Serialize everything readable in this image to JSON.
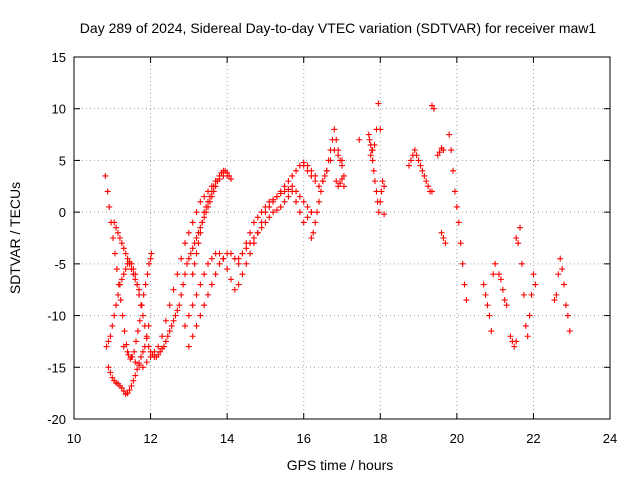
{
  "chart_data": {
    "type": "scatter",
    "title": "Day 289 of 2024, Sidereal Day-to-day VTEC variation (SDTVAR) for receiver maw1",
    "xlabel": "GPS time / hours",
    "ylabel": "SDTVAR / TECUs",
    "xlim": [
      10,
      24
    ],
    "ylim": [
      -20,
      15
    ],
    "xticks": [
      10,
      12,
      14,
      16,
      18,
      20,
      22,
      24
    ],
    "yticks": [
      -20,
      -15,
      -10,
      -5,
      0,
      5,
      10,
      15
    ],
    "grid": true,
    "marker": "+",
    "color": "#ff0000",
    "series": [
      {
        "name": "s01",
        "x": [
          10.82,
          10.88,
          10.92,
          10.97,
          11.02,
          11.07,
          11.12,
          11.17,
          11.22,
          11.27,
          11.32,
          11.37,
          11.42,
          11.47,
          11.52,
          11.57,
          11.62,
          11.67,
          11.72,
          11.77,
          11.82,
          11.87,
          11.92,
          11.96,
          12.0,
          12.02
        ],
        "y": [
          3.5,
          2.0,
          0.5,
          -1.0,
          -2.5,
          -4.0,
          -5.5,
          -7.0,
          -8.5,
          -10.0,
          -11.5,
          -12.8,
          -13.8,
          -14.2,
          -14.0,
          -13.5,
          -12.5,
          -11.5,
          -10.5,
          -9.0,
          -8.0,
          -7.0,
          -6.0,
          -5.0,
          -4.5,
          -4.0
        ]
      },
      {
        "name": "s02",
        "x": [
          10.9,
          10.95,
          11.0,
          11.05,
          11.1,
          11.15,
          11.2,
          11.25,
          11.3,
          11.35,
          11.4,
          11.45,
          11.5,
          11.55,
          11.6,
          11.65,
          11.7,
          11.75,
          11.8,
          11.85,
          11.9,
          11.95
        ],
        "y": [
          -15.0,
          -15.5,
          -16.0,
          -16.3,
          -16.5,
          -16.6,
          -16.8,
          -17.0,
          -17.3,
          -17.6,
          -17.5,
          -17.2,
          -16.8,
          -16.3,
          -15.8,
          -15.2,
          -14.6,
          -14.0,
          -13.5,
          -13.0,
          -12.2,
          -11.0
        ]
      },
      {
        "name": "s03",
        "x": [
          11.3,
          11.4,
          11.5,
          11.6,
          11.7,
          11.8,
          11.9,
          12.0,
          12.1,
          12.2,
          12.3,
          12.4,
          12.5,
          12.6,
          12.7,
          12.8,
          12.9,
          13.0,
          13.1,
          13.2,
          13.3,
          13.4,
          13.5,
          13.6,
          13.7,
          13.8,
          13.9,
          14.0
        ],
        "y": [
          -13.0,
          -13.5,
          -14.0,
          -14.5,
          -14.8,
          -15.0,
          -14.5,
          -14.0,
          -13.5,
          -13.0,
          -12.0,
          -10.5,
          -9.0,
          -7.5,
          -6.0,
          -4.5,
          -3.0,
          -2.0,
          -1.0,
          0.0,
          1.0,
          1.5,
          2.0,
          2.5,
          3.0,
          3.2,
          3.5,
          3.5
        ]
      },
      {
        "name": "s04",
        "x": [
          10.85,
          10.9,
          10.95,
          11.0,
          11.05,
          11.1,
          11.15,
          11.2,
          11.25,
          11.3,
          11.35,
          11.4,
          11.45,
          11.5,
          11.55,
          11.6,
          11.65,
          11.7,
          11.75,
          11.8,
          11.85,
          11.9,
          11.95,
          12.0,
          12.05,
          12.1,
          12.15,
          12.2,
          12.25,
          12.3,
          12.35,
          12.4,
          12.45,
          12.5,
          12.55,
          12.6,
          12.65,
          12.7,
          12.75,
          12.8,
          12.85,
          12.9,
          12.95,
          13.0,
          13.05,
          13.1,
          13.15,
          13.2,
          13.25,
          13.3,
          13.35,
          13.4,
          13.45,
          13.5,
          13.55,
          13.6,
          13.65,
          13.7,
          13.75,
          13.8,
          13.85,
          13.9,
          13.95,
          14.0,
          14.05,
          14.1
        ],
        "y": [
          -13.0,
          -12.5,
          -12.0,
          -11.0,
          -10.0,
          -9.0,
          -8.0,
          -7.0,
          -6.5,
          -6.0,
          -5.5,
          -5.0,
          -4.8,
          -5.0,
          -5.5,
          -6.0,
          -7.0,
          -8.0,
          -9.0,
          -10.0,
          -11.0,
          -12.0,
          -13.0,
          -13.5,
          -13.8,
          -14.0,
          -14.0,
          -13.8,
          -13.5,
          -13.2,
          -13.0,
          -12.5,
          -12.0,
          -11.5,
          -11.0,
          -10.5,
          -10.0,
          -9.5,
          -9.0,
          -8.0,
          -7.0,
          -6.0,
          -5.0,
          -4.5,
          -4.0,
          -3.5,
          -3.0,
          -2.5,
          -2.0,
          -1.5,
          -1.0,
          -0.5,
          0.0,
          0.5,
          1.0,
          1.5,
          2.0,
          2.5,
          3.0,
          3.5,
          3.8,
          4.0,
          4.0,
          3.8,
          3.5,
          3.2
        ]
      },
      {
        "name": "s05",
        "x": [
          11.05,
          11.1,
          11.15,
          11.2,
          11.25,
          11.3,
          11.35,
          11.4,
          11.45,
          11.5,
          11.55,
          11.6,
          11.65,
          11.7
        ],
        "y": [
          -1.0,
          -1.5,
          -2.0,
          -2.5,
          -3.0,
          -3.5,
          -4.0,
          -4.5,
          -5.0,
          -5.5,
          -6.0,
          -6.5,
          -7.0,
          -7.5
        ]
      },
      {
        "name": "s06",
        "x": [
          12.9,
          13.0,
          13.1,
          13.2,
          13.3,
          13.4,
          13.5,
          13.6,
          13.7,
          13.8,
          13.9,
          14.0,
          14.1,
          14.2,
          14.3,
          14.4,
          14.5,
          14.6,
          14.7,
          14.8,
          14.9,
          15.0,
          15.1,
          15.2,
          15.3,
          15.4,
          15.5,
          15.6,
          15.7,
          15.8,
          15.9,
          16.0,
          16.1,
          16.2,
          16.3
        ],
        "y": [
          -11.0,
          -10.0,
          -9.0,
          -8.0,
          -7.0,
          -6.0,
          -5.0,
          -4.5,
          -4.0,
          -4.0,
          -4.5,
          -5.5,
          -6.5,
          -7.5,
          -7.0,
          -6.0,
          -5.0,
          -4.0,
          -3.0,
          -2.0,
          -1.0,
          0.0,
          0.5,
          1.0,
          1.5,
          2.0,
          2.5,
          3.0,
          3.5,
          4.0,
          4.5,
          4.8,
          4.5,
          4.0,
          3.5
        ]
      },
      {
        "name": "s07",
        "x": [
          13.0,
          13.1,
          13.2,
          13.3,
          13.4,
          13.5,
          13.6,
          13.7,
          13.8,
          13.9,
          14.0,
          14.1,
          14.2,
          14.3,
          14.4,
          14.5,
          14.6,
          14.7,
          14.8,
          14.9,
          15.0,
          15.1,
          15.2,
          15.3,
          15.4,
          15.5,
          15.6,
          15.7,
          15.8,
          15.9,
          16.0,
          16.1,
          16.2
        ],
        "y": [
          -13.0,
          -12.0,
          -11.0,
          -10.0,
          -9.0,
          -8.0,
          -7.0,
          -6.0,
          -5.0,
          -4.5,
          -4.0,
          -4.0,
          -4.5,
          -5.0,
          -4.0,
          -3.0,
          -2.0,
          -1.0,
          -0.5,
          0.0,
          0.5,
          1.0,
          1.2,
          1.5,
          1.8,
          2.0,
          2.2,
          2.5,
          2.0,
          1.5,
          1.0,
          0.5,
          0.0
        ]
      },
      {
        "name": "s08",
        "x": [
          14.3,
          14.4,
          14.5,
          14.6,
          14.7,
          14.8,
          14.9,
          15.0,
          15.1,
          15.2,
          15.3,
          15.4,
          15.5,
          15.6,
          15.7,
          15.8,
          15.9,
          16.0,
          16.1,
          16.2
        ],
        "y": [
          -4.5,
          -4.0,
          -3.5,
          -3.0,
          -2.5,
          -2.0,
          -1.5,
          -1.0,
          -0.5,
          0.0,
          0.2,
          0.5,
          1.0,
          1.5,
          2.0,
          1.0,
          0.0,
          -1.0,
          -0.5,
          0.0
        ]
      },
      {
        "name": "s09",
        "x": [
          13.1,
          13.15,
          13.2,
          13.25,
          13.3,
          13.35,
          13.4,
          13.45,
          13.5,
          13.55,
          13.6,
          13.65,
          13.7
        ],
        "y": [
          -6.0,
          -5.0,
          -4.0,
          -3.0,
          -2.0,
          -1.0,
          0.0,
          0.5,
          1.0,
          1.5,
          2.0,
          2.5,
          3.0
        ]
      },
      {
        "name": "s10",
        "x": [
          16.0,
          16.1,
          16.2,
          16.3,
          16.4,
          16.5,
          16.6,
          16.7,
          16.8,
          16.9,
          17.0
        ],
        "y": [
          4.5,
          4.0,
          3.5,
          3.0,
          2.5,
          3.0,
          4.0,
          5.0,
          6.0,
          5.5,
          5.0
        ]
      },
      {
        "name": "s11",
        "x": [
          16.2,
          16.25,
          16.3,
          16.35,
          16.4,
          16.45,
          16.5,
          16.55,
          16.6,
          16.65,
          16.7,
          16.75,
          16.8,
          16.85,
          16.9,
          16.95,
          17.0,
          17.05
        ],
        "y": [
          -2.5,
          -2.0,
          -1.0,
          0.0,
          1.0,
          2.0,
          3.0,
          3.5,
          4.0,
          5.0,
          6.0,
          7.0,
          8.0,
          7.0,
          6.0,
          5.0,
          4.5,
          3.5
        ]
      },
      {
        "name": "s12",
        "x": [
          16.85,
          16.9,
          16.95,
          17.0,
          17.05
        ],
        "y": [
          3.0,
          2.5,
          2.8,
          3.2,
          2.5
        ]
      },
      {
        "name": "s13",
        "x": [
          17.45
        ],
        "y": [
          7.0
        ]
      },
      {
        "name": "s14",
        "x": [
          17.7,
          17.72,
          17.75,
          17.78,
          17.8,
          17.83,
          17.86,
          17.9,
          17.93,
          17.96,
          18.0,
          18.03,
          18.06,
          18.1
        ],
        "y": [
          7.5,
          7.0,
          6.5,
          6.0,
          5.0,
          4.0,
          3.0,
          2.0,
          1.0,
          0.0,
          1.0,
          2.0,
          3.0,
          2.5
        ]
      },
      {
        "name": "s15",
        "x": [
          17.75,
          17.8,
          17.85,
          17.9,
          17.95,
          18.0
        ],
        "y": [
          5.5,
          6.0,
          6.5,
          8.0,
          10.5,
          8.0
        ]
      },
      {
        "name": "s16",
        "x": [
          18.1
        ],
        "y": [
          -0.2
        ]
      },
      {
        "name": "s17",
        "x": [
          18.75,
          18.8,
          18.85,
          18.9,
          18.95,
          19.0,
          19.05,
          19.1,
          19.15,
          19.2,
          19.25,
          19.3,
          19.35
        ],
        "y": [
          4.5,
          5.0,
          5.5,
          6.0,
          5.5,
          5.0,
          4.5,
          4.0,
          3.5,
          3.0,
          2.5,
          2.0,
          2.0
        ]
      },
      {
        "name": "s18",
        "x": [
          19.35,
          19.4
        ],
        "y": [
          10.3,
          10.0
        ]
      },
      {
        "name": "s19",
        "x": [
          19.5,
          19.55,
          19.6,
          19.65
        ],
        "y": [
          5.5,
          5.8,
          6.2,
          6.0
        ]
      },
      {
        "name": "s20",
        "x": [
          19.8,
          19.85,
          19.9,
          19.95,
          20.0,
          20.05,
          20.1,
          20.15,
          20.2,
          20.25
        ],
        "y": [
          7.5,
          6.0,
          4.0,
          2.0,
          0.5,
          -1.0,
          -3.0,
          -5.0,
          -7.0,
          -8.5
        ]
      },
      {
        "name": "s21",
        "x": [
          19.6,
          19.65,
          19.7
        ],
        "y": [
          -2.0,
          -2.5,
          -3.0
        ]
      },
      {
        "name": "s22",
        "x": [
          20.7,
          20.75,
          20.8,
          20.85,
          20.9,
          20.95,
          21.0
        ],
        "y": [
          -7.0,
          -8.0,
          -9.0,
          -10.0,
          -11.5,
          -6.0,
          -5.0
        ]
      },
      {
        "name": "s23",
        "x": [
          21.1,
          21.15,
          21.2,
          21.25,
          21.3
        ],
        "y": [
          -6.0,
          -6.5,
          -7.5,
          -8.5,
          -9.0
        ]
      },
      {
        "name": "s24",
        "x": [
          21.4,
          21.45,
          21.5,
          21.55
        ],
        "y": [
          -12.0,
          -12.5,
          -13.0,
          -12.5
        ]
      },
      {
        "name": "s25",
        "x": [
          21.55,
          21.6,
          21.65,
          21.7,
          21.75,
          21.8,
          21.85,
          21.9,
          21.95,
          22.0,
          22.05
        ],
        "y": [
          -2.5,
          -3.0,
          -1.5,
          -5.0,
          -8.0,
          -11.0,
          -12.0,
          -10.0,
          -8.0,
          -6.0,
          -7.0
        ]
      },
      {
        "name": "s26",
        "x": [
          22.55,
          22.6,
          22.65,
          22.7,
          22.75,
          22.8,
          22.85,
          22.9,
          22.95
        ],
        "y": [
          -8.5,
          -8.0,
          -6.0,
          -4.5,
          -5.5,
          -7.0,
          -9.0,
          -10.0,
          -11.5
        ]
      }
    ]
  }
}
